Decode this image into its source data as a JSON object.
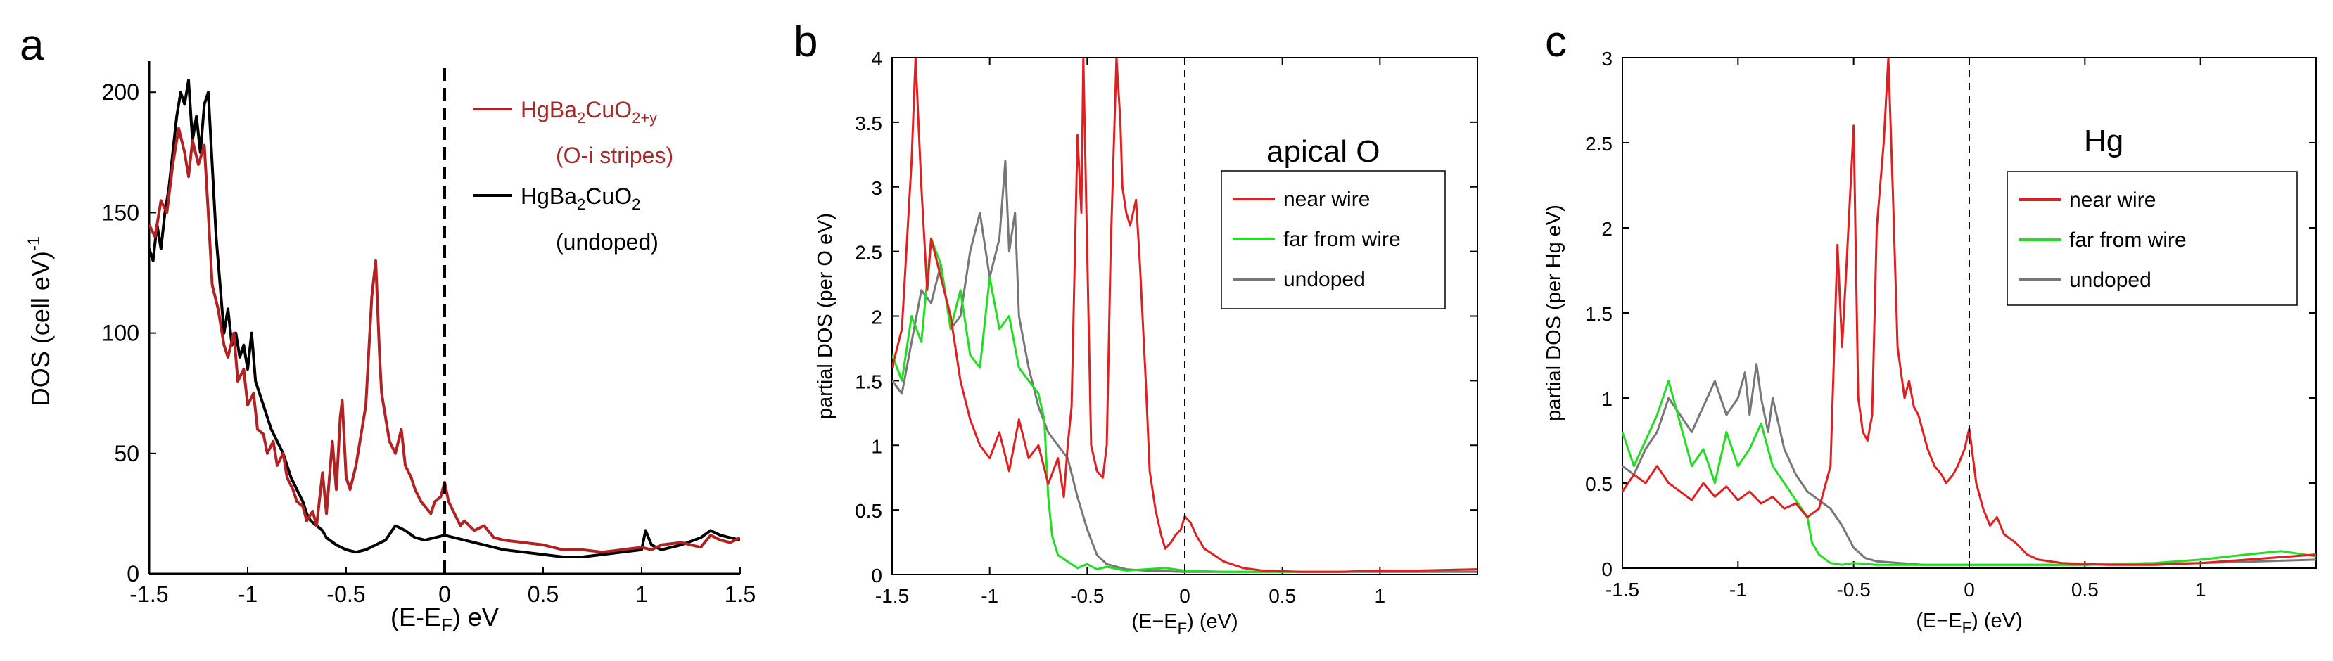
{
  "chart_data": [
    {
      "panel": "a",
      "type": "line",
      "title": "",
      "xlabel": "(E-E",
      "xlabel_sub": "F",
      "xlabel_tail": ") eV",
      "ylabel": "DOS (cell eV)",
      "ylabel_sup": "-1",
      "xlim": [
        -1.5,
        1.5
      ],
      "ylim": [
        0,
        210
      ],
      "xticks": [
        -1.5,
        -1,
        -0.5,
        0,
        0.5,
        1,
        1.5
      ],
      "xtick_labels": [
        "-1.5",
        "-1",
        "-0.5",
        "0",
        "0.5",
        "1",
        "1.5"
      ],
      "yticks": [
        0,
        50,
        100,
        150,
        200
      ],
      "ytick_labels": [
        "0",
        "50",
        "100",
        "150",
        "200"
      ],
      "fermi_line_x": 0,
      "legend": [
        {
          "name": "HgBa2CuO2+y",
          "label_parts": [
            "HgBa",
            "2",
            "CuO",
            "2+y"
          ],
          "note": "(O-i stripes)",
          "color": "#b22222"
        },
        {
          "name": "HgBa2CuO2",
          "label_parts": [
            "HgBa",
            "2",
            "CuO",
            "2"
          ],
          "note": "(undoped)",
          "color": "#000000"
        }
      ],
      "series": [
        {
          "name": "HgBa2CuO2+y",
          "color": "#b22222",
          "x": [
            -1.5,
            -1.47,
            -1.44,
            -1.41,
            -1.38,
            -1.35,
            -1.32,
            -1.3,
            -1.28,
            -1.25,
            -1.22,
            -1.2,
            -1.18,
            -1.15,
            -1.12,
            -1.1,
            -1.07,
            -1.05,
            -1.02,
            -1.0,
            -0.97,
            -0.95,
            -0.92,
            -0.9,
            -0.87,
            -0.85,
            -0.82,
            -0.8,
            -0.77,
            -0.75,
            -0.72,
            -0.7,
            -0.67,
            -0.65,
            -0.62,
            -0.6,
            -0.57,
            -0.55,
            -0.53,
            -0.52,
            -0.5,
            -0.48,
            -0.45,
            -0.42,
            -0.4,
            -0.37,
            -0.35,
            -0.33,
            -0.32,
            -0.3,
            -0.28,
            -0.25,
            -0.22,
            -0.2,
            -0.17,
            -0.15,
            -0.12,
            -0.1,
            -0.07,
            -0.05,
            -0.02,
            0.0,
            0.02,
            0.05,
            0.08,
            0.1,
            0.15,
            0.2,
            0.25,
            0.3,
            0.4,
            0.5,
            0.6,
            0.7,
            0.8,
            0.9,
            1.0,
            1.05,
            1.1,
            1.2,
            1.3,
            1.35,
            1.4,
            1.45,
            1.5
          ],
          "y": [
            145,
            140,
            155,
            150,
            170,
            185,
            175,
            165,
            180,
            170,
            178,
            150,
            120,
            110,
            95,
            90,
            100,
            80,
            85,
            70,
            75,
            60,
            58,
            50,
            55,
            45,
            50,
            40,
            35,
            30,
            28,
            22,
            26,
            20,
            42,
            25,
            55,
            35,
            65,
            72,
            40,
            35,
            45,
            60,
            70,
            115,
            130,
            90,
            75,
            65,
            55,
            50,
            60,
            45,
            40,
            35,
            30,
            28,
            25,
            30,
            32,
            38,
            30,
            25,
            20,
            22,
            18,
            20,
            15,
            14,
            13,
            12,
            10,
            10,
            9,
            10,
            11,
            10,
            12,
            13,
            11,
            16,
            14,
            13,
            15
          ]
        },
        {
          "name": "HgBa2CuO2",
          "color": "#000000",
          "x": [
            -1.5,
            -1.48,
            -1.46,
            -1.44,
            -1.42,
            -1.4,
            -1.38,
            -1.36,
            -1.34,
            -1.32,
            -1.3,
            -1.28,
            -1.26,
            -1.24,
            -1.22,
            -1.2,
            -1.18,
            -1.16,
            -1.14,
            -1.12,
            -1.1,
            -1.08,
            -1.06,
            -1.04,
            -1.02,
            -1.0,
            -0.98,
            -0.96,
            -0.94,
            -0.92,
            -0.9,
            -0.88,
            -0.85,
            -0.82,
            -0.8,
            -0.78,
            -0.75,
            -0.72,
            -0.7,
            -0.68,
            -0.65,
            -0.62,
            -0.6,
            -0.55,
            -0.5,
            -0.45,
            -0.4,
            -0.35,
            -0.3,
            -0.25,
            -0.2,
            -0.15,
            -0.1,
            -0.05,
            0.0,
            0.1,
            0.2,
            0.3,
            0.4,
            0.5,
            0.6,
            0.7,
            0.8,
            0.9,
            1.0,
            1.02,
            1.05,
            1.1,
            1.2,
            1.3,
            1.35,
            1.4,
            1.5
          ],
          "y": [
            135,
            130,
            145,
            135,
            150,
            160,
            175,
            190,
            200,
            195,
            205,
            180,
            190,
            175,
            195,
            200,
            170,
            140,
            120,
            100,
            110,
            95,
            100,
            90,
            95,
            85,
            100,
            80,
            75,
            70,
            65,
            60,
            55,
            50,
            45,
            40,
            35,
            30,
            25,
            22,
            20,
            18,
            15,
            12,
            10,
            9,
            10,
            12,
            14,
            20,
            18,
            15,
            14,
            15,
            16,
            14,
            12,
            10,
            9,
            8,
            7,
            7,
            8,
            9,
            10,
            18,
            12,
            10,
            12,
            15,
            18,
            16,
            14
          ]
        }
      ]
    },
    {
      "panel": "b",
      "type": "line",
      "title": "apical O",
      "xlabel": "(E−E",
      "xlabel_sub": "F",
      "xlabel_tail": ") (eV)",
      "ylabel": "partial DOS (per O eV)",
      "xlim": [
        -1.5,
        1.5
      ],
      "ylim": [
        0,
        4
      ],
      "xticks": [
        -1.5,
        -1,
        -0.5,
        0,
        0.5,
        1
      ],
      "xtick_labels": [
        "-1.5",
        "-1",
        "-0.5",
        "0",
        "0.5",
        "1"
      ],
      "yticks": [
        0,
        0.5,
        1,
        1.5,
        2,
        2.5,
        3,
        3.5,
        4
      ],
      "ytick_labels": [
        "0",
        "0.5",
        "1",
        "1.5",
        "2",
        "2.5",
        "3",
        "3.5",
        "4"
      ],
      "fermi_line_x": 0,
      "legend": [
        {
          "name": "near wire",
          "color": "#e02020"
        },
        {
          "name": "far from wire",
          "color": "#22dd22"
        },
        {
          "name": "undoped",
          "color": "#777777"
        }
      ],
      "series": [
        {
          "name": "near wire",
          "color": "#e02020",
          "x": [
            -1.5,
            -1.45,
            -1.4,
            -1.38,
            -1.35,
            -1.32,
            -1.3,
            -1.25,
            -1.2,
            -1.15,
            -1.1,
            -1.05,
            -1.0,
            -0.95,
            -0.9,
            -0.85,
            -0.8,
            -0.75,
            -0.7,
            -0.65,
            -0.62,
            -0.6,
            -0.58,
            -0.55,
            -0.53,
            -0.52,
            -0.5,
            -0.48,
            -0.45,
            -0.42,
            -0.4,
            -0.38,
            -0.35,
            -0.33,
            -0.32,
            -0.3,
            -0.28,
            -0.25,
            -0.23,
            -0.2,
            -0.18,
            -0.15,
            -0.12,
            -0.1,
            -0.07,
            -0.05,
            -0.02,
            0.0,
            0.03,
            0.06,
            0.1,
            0.15,
            0.2,
            0.3,
            0.4,
            0.6,
            0.8,
            1.0,
            1.2,
            1.5
          ],
          "y": [
            1.6,
            1.9,
            3.2,
            4.0,
            3.0,
            2.2,
            2.6,
            2.3,
            2.0,
            1.5,
            1.2,
            1.0,
            0.9,
            1.1,
            0.8,
            1.2,
            0.9,
            1.0,
            0.7,
            0.9,
            0.6,
            1.0,
            1.3,
            3.4,
            2.8,
            4.0,
            2.5,
            1.0,
            0.8,
            0.75,
            1.0,
            2.5,
            4.0,
            3.5,
            3.0,
            2.8,
            2.7,
            2.9,
            2.4,
            1.5,
            0.8,
            0.5,
            0.3,
            0.2,
            0.25,
            0.3,
            0.35,
            0.45,
            0.4,
            0.3,
            0.2,
            0.15,
            0.1,
            0.05,
            0.03,
            0.02,
            0.02,
            0.03,
            0.03,
            0.04
          ]
        },
        {
          "name": "far from wire",
          "color": "#22dd22",
          "x": [
            -1.5,
            -1.45,
            -1.4,
            -1.35,
            -1.3,
            -1.25,
            -1.2,
            -1.15,
            -1.1,
            -1.05,
            -1.0,
            -0.95,
            -0.9,
            -0.85,
            -0.8,
            -0.75,
            -0.72,
            -0.7,
            -0.68,
            -0.65,
            -0.6,
            -0.55,
            -0.5,
            -0.45,
            -0.4,
            -0.3,
            -0.2,
            -0.1,
            0.0,
            0.2,
            0.5,
            0.8,
            1.0,
            1.2,
            1.5
          ],
          "y": [
            1.7,
            1.5,
            2.0,
            1.8,
            2.6,
            2.4,
            1.9,
            2.2,
            1.7,
            1.6,
            2.3,
            1.9,
            2.0,
            1.6,
            1.5,
            1.4,
            1.2,
            0.6,
            0.3,
            0.15,
            0.1,
            0.05,
            0.08,
            0.04,
            0.06,
            0.03,
            0.04,
            0.05,
            0.03,
            0.02,
            0.02,
            0.02,
            0.03,
            0.03,
            0.04
          ]
        },
        {
          "name": "undoped",
          "color": "#777777",
          "x": [
            -1.5,
            -1.45,
            -1.4,
            -1.35,
            -1.3,
            -1.25,
            -1.2,
            -1.15,
            -1.1,
            -1.05,
            -1.0,
            -0.95,
            -0.92,
            -0.9,
            -0.87,
            -0.85,
            -0.8,
            -0.75,
            -0.7,
            -0.65,
            -0.6,
            -0.55,
            -0.5,
            -0.45,
            -0.4,
            -0.3,
            -0.2,
            0.0,
            0.5,
            1.0,
            1.5
          ],
          "y": [
            1.5,
            1.4,
            1.8,
            2.2,
            2.1,
            2.4,
            1.9,
            2.0,
            2.5,
            2.8,
            2.3,
            2.6,
            3.2,
            2.5,
            2.8,
            2.0,
            1.6,
            1.3,
            1.1,
            1.0,
            0.9,
            0.6,
            0.35,
            0.15,
            0.08,
            0.04,
            0.03,
            0.02,
            0.02,
            0.02,
            0.02
          ]
        }
      ]
    },
    {
      "panel": "c",
      "type": "line",
      "title": "Hg",
      "xlabel": "(E−E",
      "xlabel_sub": "F",
      "xlabel_tail": ") (eV)",
      "ylabel": "partial DOS (per Hg eV)",
      "xlim": [
        -1.5,
        1.5
      ],
      "ylim": [
        0,
        3
      ],
      "xticks": [
        -1.5,
        -1,
        -0.5,
        0,
        0.5,
        1
      ],
      "xtick_labels": [
        "-1.5",
        "-1",
        "-0.5",
        "0",
        "0.5",
        "1"
      ],
      "yticks": [
        0,
        0.5,
        1,
        1.5,
        2,
        2.5,
        3
      ],
      "ytick_labels": [
        "0",
        "0.5",
        "1",
        "1.5",
        "2",
        "2.5",
        "3"
      ],
      "fermi_line_x": 0,
      "legend": [
        {
          "name": "near wire",
          "color": "#e02020"
        },
        {
          "name": "far from wire",
          "color": "#22dd22"
        },
        {
          "name": "undoped",
          "color": "#777777"
        }
      ],
      "series": [
        {
          "name": "near wire",
          "color": "#e02020",
          "x": [
            -1.5,
            -1.45,
            -1.4,
            -1.35,
            -1.3,
            -1.25,
            -1.2,
            -1.15,
            -1.1,
            -1.05,
            -1.0,
            -0.95,
            -0.9,
            -0.85,
            -0.8,
            -0.75,
            -0.7,
            -0.65,
            -0.6,
            -0.57,
            -0.55,
            -0.53,
            -0.5,
            -0.48,
            -0.46,
            -0.44,
            -0.42,
            -0.4,
            -0.37,
            -0.35,
            -0.33,
            -0.31,
            -0.3,
            -0.28,
            -0.26,
            -0.24,
            -0.22,
            -0.2,
            -0.18,
            -0.15,
            -0.12,
            -0.1,
            -0.07,
            -0.05,
            -0.02,
            0.0,
            0.03,
            0.06,
            0.09,
            0.12,
            0.15,
            0.2,
            0.25,
            0.3,
            0.4,
            0.6,
            0.8,
            1.0,
            1.2,
            1.5
          ],
          "y": [
            0.45,
            0.55,
            0.5,
            0.6,
            0.5,
            0.45,
            0.4,
            0.5,
            0.42,
            0.48,
            0.4,
            0.45,
            0.38,
            0.42,
            0.35,
            0.38,
            0.3,
            0.35,
            0.6,
            1.9,
            1.3,
            1.8,
            2.6,
            1.0,
            0.8,
            0.75,
            0.9,
            2.0,
            2.5,
            3.0,
            2.2,
            1.3,
            1.2,
            1.0,
            1.1,
            0.95,
            0.9,
            0.8,
            0.7,
            0.6,
            0.55,
            0.5,
            0.55,
            0.6,
            0.7,
            0.82,
            0.5,
            0.35,
            0.25,
            0.3,
            0.2,
            0.15,
            0.08,
            0.05,
            0.03,
            0.02,
            0.02,
            0.03,
            0.05,
            0.08
          ]
        },
        {
          "name": "far from wire",
          "color": "#22dd22",
          "x": [
            -1.5,
            -1.45,
            -1.4,
            -1.35,
            -1.3,
            -1.25,
            -1.2,
            -1.15,
            -1.1,
            -1.05,
            -1.0,
            -0.95,
            -0.9,
            -0.85,
            -0.8,
            -0.75,
            -0.7,
            -0.68,
            -0.65,
            -0.62,
            -0.6,
            -0.55,
            -0.5,
            -0.4,
            -0.3,
            -0.2,
            -0.1,
            0.0,
            0.2,
            0.5,
            0.8,
            1.0,
            1.2,
            1.35,
            1.5
          ],
          "y": [
            0.8,
            0.6,
            0.75,
            0.9,
            1.1,
            0.85,
            0.6,
            0.7,
            0.5,
            0.8,
            0.6,
            0.7,
            0.85,
            0.6,
            0.5,
            0.4,
            0.3,
            0.15,
            0.08,
            0.05,
            0.03,
            0.02,
            0.03,
            0.02,
            0.02,
            0.02,
            0.02,
            0.02,
            0.02,
            0.02,
            0.03,
            0.05,
            0.08,
            0.1,
            0.07
          ]
        },
        {
          "name": "undoped",
          "color": "#777777",
          "x": [
            -1.5,
            -1.45,
            -1.4,
            -1.35,
            -1.3,
            -1.25,
            -1.2,
            -1.15,
            -1.1,
            -1.05,
            -1.0,
            -0.97,
            -0.95,
            -0.92,
            -0.9,
            -0.87,
            -0.85,
            -0.8,
            -0.75,
            -0.7,
            -0.65,
            -0.6,
            -0.55,
            -0.5,
            -0.45,
            -0.4,
            -0.3,
            -0.2,
            0.0,
            0.5,
            1.0,
            1.5
          ],
          "y": [
            0.6,
            0.55,
            0.7,
            0.8,
            1.0,
            0.9,
            0.8,
            0.95,
            1.1,
            0.9,
            1.0,
            1.15,
            0.9,
            1.2,
            1.0,
            0.8,
            1.0,
            0.7,
            0.55,
            0.45,
            0.4,
            0.35,
            0.25,
            0.12,
            0.06,
            0.04,
            0.03,
            0.02,
            0.02,
            0.02,
            0.03,
            0.05
          ]
        }
      ]
    }
  ]
}
